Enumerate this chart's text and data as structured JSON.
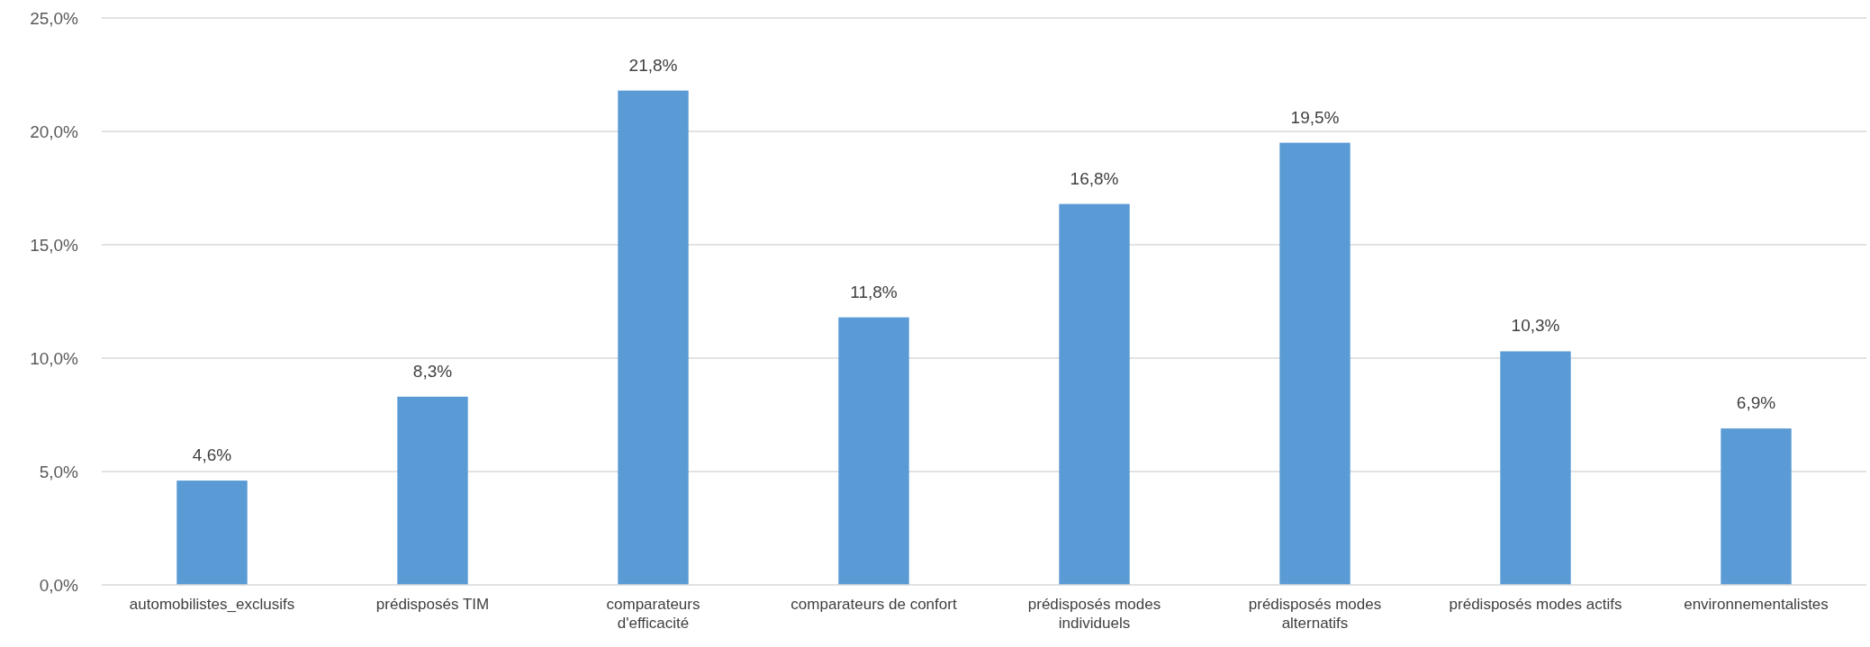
{
  "chart_data": {
    "type": "bar",
    "categories": [
      "automobilistes_exclusifs",
      "prédisposés TIM",
      "comparateurs d'efficacité",
      "comparateurs de confort",
      "prédisposés modes individuels",
      "prédisposés modes alternatifs",
      "prédisposés modes actifs",
      "environnementalistes"
    ],
    "values": [
      4.6,
      8.3,
      21.8,
      11.8,
      16.8,
      19.5,
      10.3,
      6.9
    ],
    "value_labels": [
      "4,6%",
      "8,3%",
      "21,8%",
      "11,8%",
      "16,8%",
      "19,5%",
      "10,3%",
      "6,9%"
    ],
    "color": "#5b9bd5",
    "ylim": [
      0,
      25
    ],
    "yticks": [
      {
        "value": 0,
        "label": "0,0%"
      },
      {
        "value": 5,
        "label": "5,0%"
      },
      {
        "value": 10,
        "label": "10,0%"
      },
      {
        "value": 15,
        "label": "15,0%"
      },
      {
        "value": 20,
        "label": "20,0%"
      },
      {
        "value": 25,
        "label": "25,0%"
      }
    ],
    "grid": "y"
  }
}
